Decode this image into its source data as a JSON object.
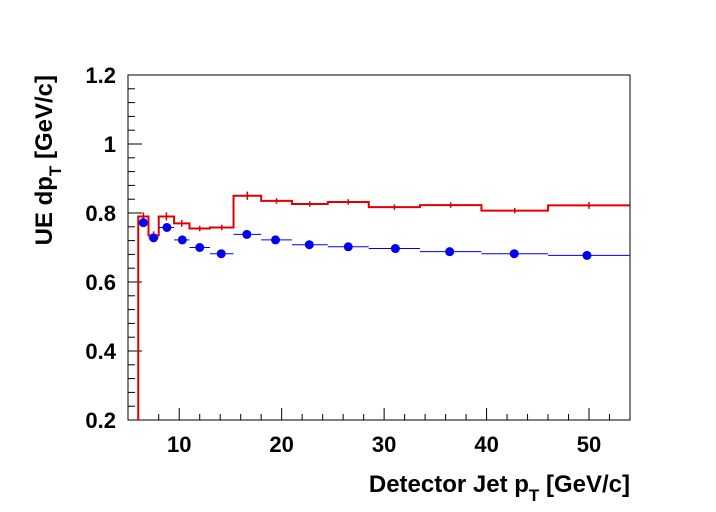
{
  "chart_data": {
    "type": "line",
    "title": "",
    "xlabel": {
      "main": "Detector Jet p",
      "sub": "T",
      "suffix": " [GeV/c]"
    },
    "ylabel": {
      "main": "UE dp",
      "sub": "T",
      "suffix": " [GeV/c]"
    },
    "xlim": [
      5,
      54
    ],
    "ylim": [
      0.2,
      1.2
    ],
    "x_ticks": [
      10,
      20,
      30,
      40,
      50
    ],
    "y_ticks": [
      0.2,
      0.4,
      0.6,
      0.8,
      1,
      1.2
    ],
    "x_tick_labels": [
      "10",
      "20",
      "30",
      "40",
      "50"
    ],
    "y_tick_labels": [
      "0.2",
      "0.4",
      "0.6",
      "0.8",
      "1",
      "1.2"
    ],
    "grid": false,
    "series": [
      {
        "style": "histogram-step",
        "color": "#e00000",
        "bins": [
          {
            "xlow": 6,
            "xhigh": 7,
            "y": 0.79,
            "err": 0.012
          },
          {
            "xlow": 7,
            "xhigh": 8,
            "y": 0.735,
            "err": 0.012
          },
          {
            "xlow": 8,
            "xhigh": 9.5,
            "y": 0.79,
            "err": 0.012
          },
          {
            "xlow": 9.5,
            "xhigh": 11,
            "y": 0.77,
            "err": 0.01
          },
          {
            "xlow": 11,
            "xhigh": 13,
            "y": 0.755,
            "err": 0.008
          },
          {
            "xlow": 13,
            "xhigh": 15.3,
            "y": 0.758,
            "err": 0.008
          },
          {
            "xlow": 15.3,
            "xhigh": 18,
            "y": 0.85,
            "err": 0.012
          },
          {
            "xlow": 18,
            "xhigh": 21,
            "y": 0.835,
            "err": 0.008
          },
          {
            "xlow": 21,
            "xhigh": 24.5,
            "y": 0.826,
            "err": 0.008
          },
          {
            "xlow": 24.5,
            "xhigh": 28.5,
            "y": 0.832,
            "err": 0.008
          },
          {
            "xlow": 28.5,
            "xhigh": 33.5,
            "y": 0.817,
            "err": 0.008
          },
          {
            "xlow": 33.5,
            "xhigh": 39.5,
            "y": 0.823,
            "err": 0.008
          },
          {
            "xlow": 39.5,
            "xhigh": 46,
            "y": 0.807,
            "err": 0.008
          },
          {
            "xlow": 46,
            "xhigh": 54,
            "y": 0.822,
            "err": 0.01
          }
        ],
        "left_edge": {
          "x": 6,
          "y_from": 0.2
        }
      },
      {
        "style": "markers-with-xerr",
        "color": "#0000ee",
        "points": [
          {
            "x": 6.5,
            "y": 0.772,
            "xlow": 6,
            "xhigh": 7
          },
          {
            "x": 7.5,
            "y": 0.728,
            "xlow": 7,
            "xhigh": 8
          },
          {
            "x": 8.8,
            "y": 0.758,
            "xlow": 8,
            "xhigh": 9.5
          },
          {
            "x": 10.3,
            "y": 0.722,
            "xlow": 9.5,
            "xhigh": 11
          },
          {
            "x": 12,
            "y": 0.7,
            "xlow": 11,
            "xhigh": 13
          },
          {
            "x": 14.1,
            "y": 0.682,
            "xlow": 13,
            "xhigh": 15.3
          },
          {
            "x": 16.6,
            "y": 0.738,
            "xlow": 15.3,
            "xhigh": 18
          },
          {
            "x": 19.4,
            "y": 0.722,
            "xlow": 18,
            "xhigh": 21
          },
          {
            "x": 22.7,
            "y": 0.708,
            "xlow": 21,
            "xhigh": 24.5
          },
          {
            "x": 26.5,
            "y": 0.702,
            "xlow": 24.5,
            "xhigh": 28.5
          },
          {
            "x": 31.1,
            "y": 0.697,
            "xlow": 28.5,
            "xhigh": 33.5
          },
          {
            "x": 36.4,
            "y": 0.688,
            "xlow": 33.5,
            "xhigh": 39.5
          },
          {
            "x": 42.7,
            "y": 0.682,
            "xlow": 39.5,
            "xhigh": 46
          },
          {
            "x": 49.8,
            "y": 0.677,
            "xlow": 46,
            "xhigh": 54
          }
        ]
      }
    ]
  }
}
